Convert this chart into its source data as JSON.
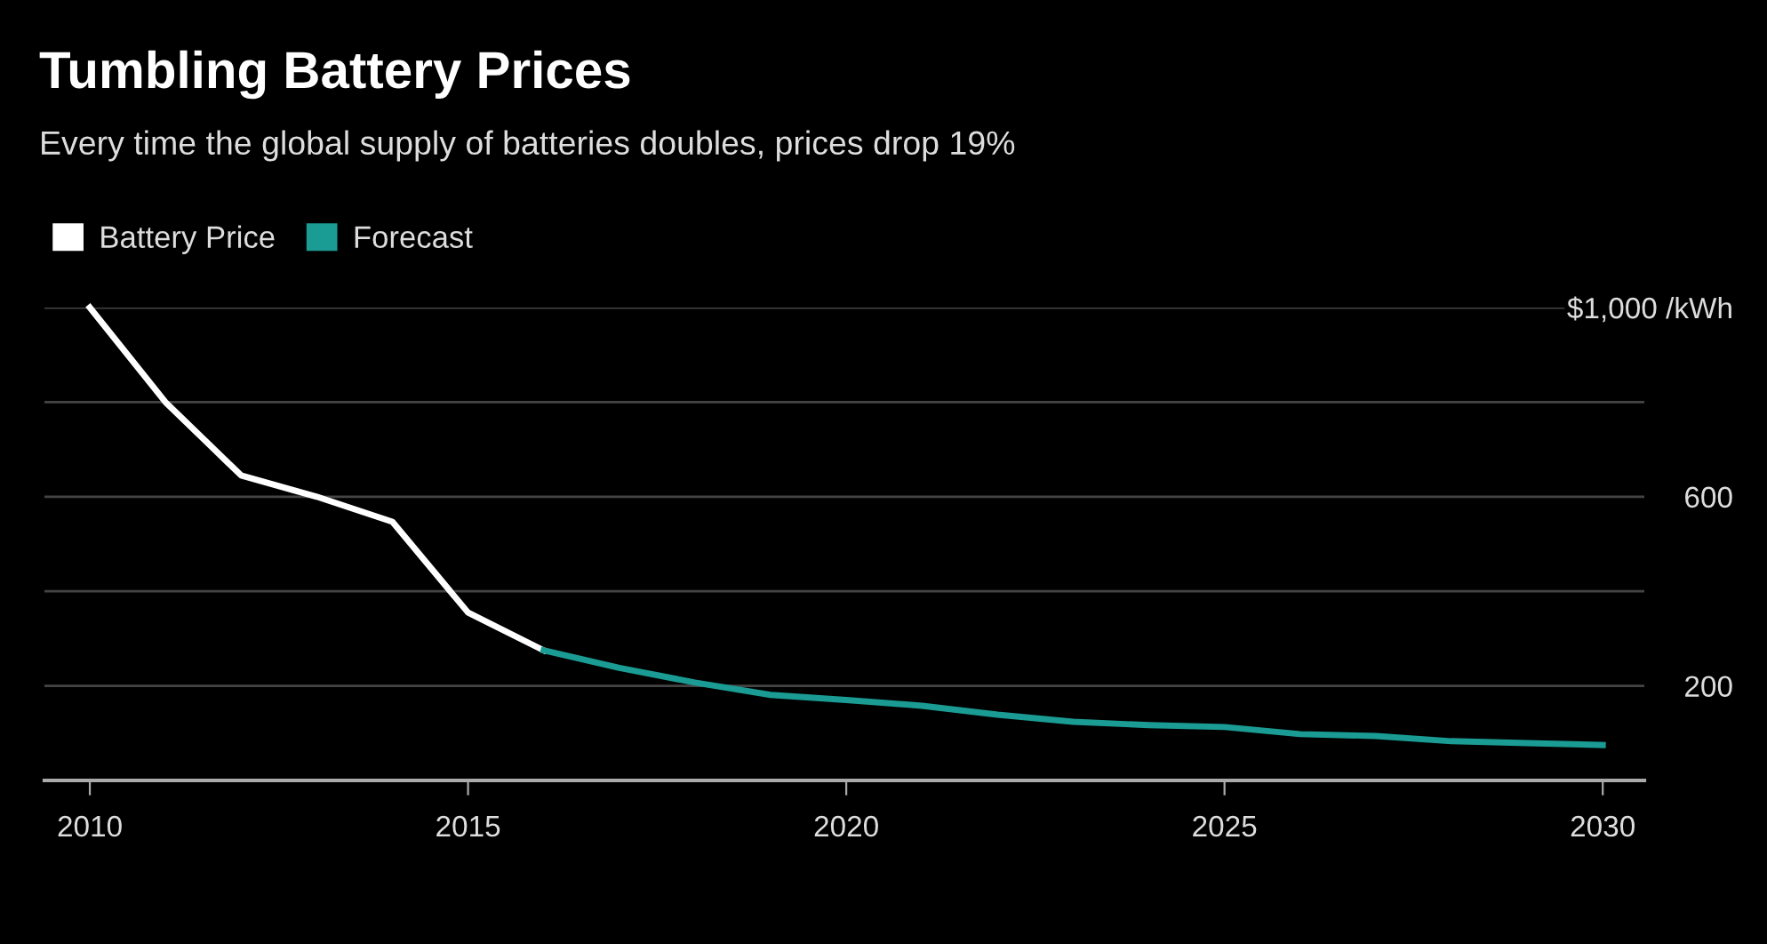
{
  "chart_data": {
    "type": "line",
    "title": "Tumbling Battery Prices",
    "subtitle": "Every time the global supply of batteries doubles, prices drop 19%",
    "series": [
      {
        "name": "Battery Price",
        "color": "#ffffff",
        "x": [
          2010,
          2011,
          2012,
          2013,
          2014,
          2015,
          2016
        ],
        "values": [
          1000,
          800,
          645,
          600,
          547,
          355,
          275
        ]
      },
      {
        "name": "Forecast",
        "color": "#1a9c94",
        "x": [
          2016,
          2017,
          2018,
          2019,
          2020,
          2021,
          2022,
          2023,
          2024,
          2025,
          2026,
          2027,
          2028,
          2029,
          2030
        ],
        "values": [
          275,
          238,
          207,
          181,
          170,
          158,
          139,
          124,
          117,
          113,
          98,
          94,
          83,
          79,
          75
        ]
      }
    ],
    "xlim": [
      2009.4,
      2030.55
    ],
    "xticks": [
      2010,
      2015,
      2020,
      2025,
      2030
    ],
    "ylim": [
      0,
      1000
    ],
    "yticks": [
      {
        "value": 200,
        "label": "200"
      },
      {
        "value": 400,
        "label": null
      },
      {
        "value": 600,
        "label": "600"
      },
      {
        "value": 800,
        "label": null
      },
      {
        "value": 1000,
        "label": "$1,000 /kWh"
      }
    ],
    "grid": "y",
    "legend": "top left",
    "marker": "none",
    "line_style": "solid"
  }
}
